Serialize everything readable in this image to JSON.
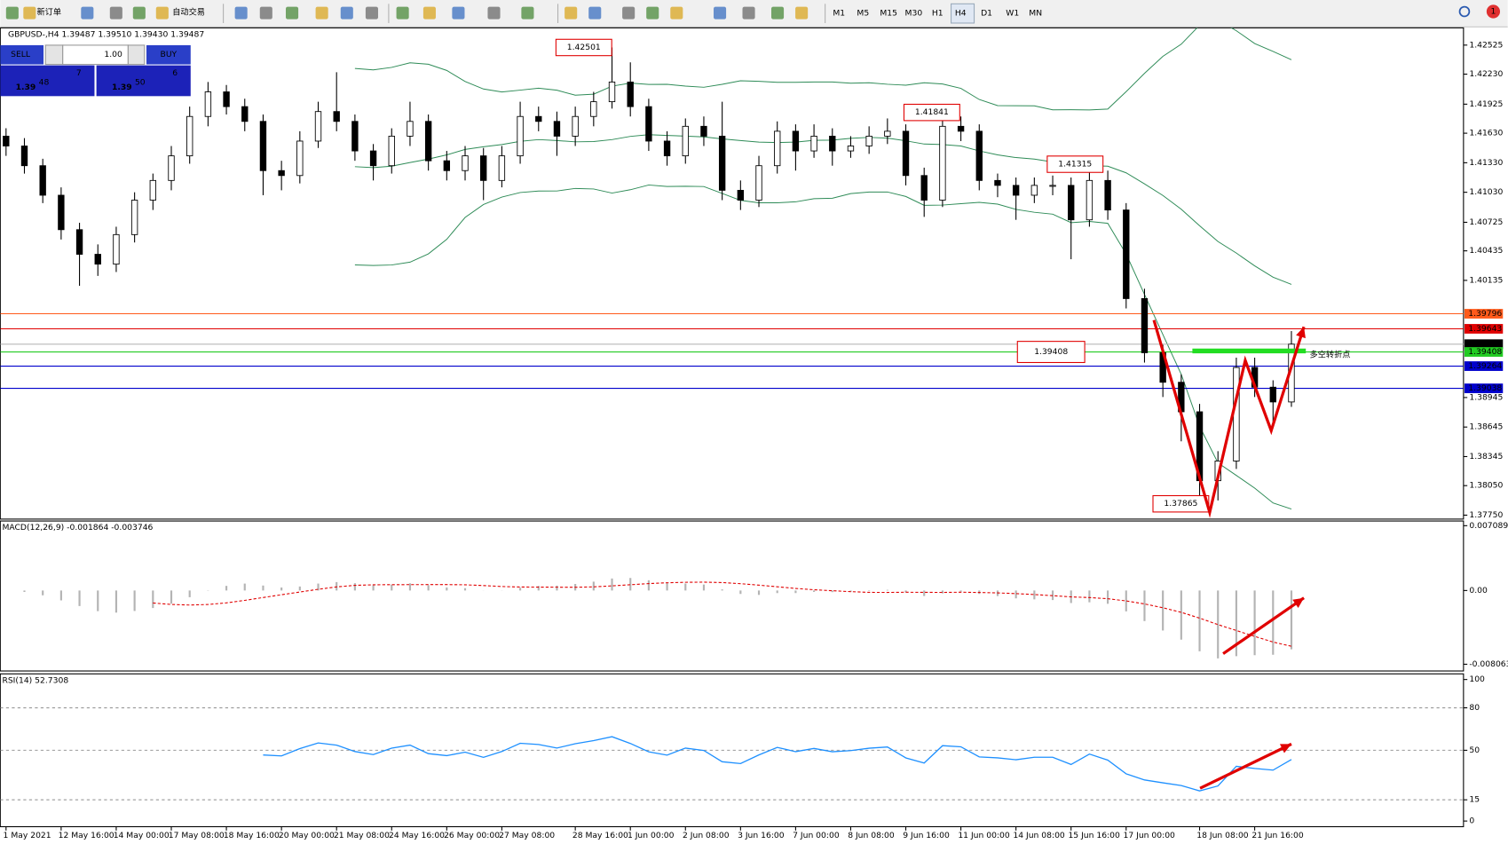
{
  "toolbar": {
    "new_order": "新订单",
    "auto_trading": "自动交易",
    "timeframes": [
      "M1",
      "M5",
      "M15",
      "M30",
      "H1",
      "H4",
      "D1",
      "W1",
      "MN"
    ],
    "active_timeframe": "H4",
    "notifications": "1"
  },
  "trade_panel": {
    "sell": "SELL",
    "buy": "BUY",
    "lots": "1.00",
    "bid": {
      "big": "1.39",
      "main": "48",
      "small": "7"
    },
    "ask": {
      "big": "1.39",
      "main": "50",
      "small": "6"
    }
  },
  "annotation": "多空转折点",
  "chart_data": [
    {
      "type": "candlestick",
      "title": "GBPUSD-,H4 1.39487 1.39510 1.39430 1.39487",
      "categories": [
        "1 May 2021",
        null,
        null,
        "12 May 16:00",
        null,
        null,
        "14 May 00:00",
        null,
        null,
        "17 May 08:00",
        null,
        null,
        "18 May 16:00",
        null,
        null,
        "20 May 00:00",
        null,
        null,
        "21 May 08:00",
        null,
        null,
        "24 May 16:00",
        null,
        null,
        "26 May 00:00",
        null,
        null,
        "27 May 08:00",
        null,
        null,
        null,
        "28 May 16:00",
        null,
        null,
        "1 Jun 00:00",
        null,
        null,
        "2 Jun 08:00",
        null,
        null,
        "3 Jun 16:00",
        null,
        null,
        "7 Jun 00:00",
        null,
        null,
        "8 Jun 08:00",
        null,
        null,
        "9 Jun 16:00",
        null,
        null,
        "11 Jun 00:00",
        null,
        null,
        "14 Jun 08:00",
        null,
        null,
        "15 Jun 16:00",
        null,
        null,
        "17 Jun 00:00",
        null,
        null,
        null,
        "18 Jun 08:00",
        null,
        null,
        "21 Jun 16:00",
        null,
        null
      ],
      "open": [
        1.416,
        1.415,
        1.413,
        1.41,
        1.4065,
        1.404,
        1.403,
        1.406,
        1.4095,
        1.4115,
        1.414,
        1.418,
        1.4205,
        1.419,
        1.4175,
        1.4125,
        1.412,
        1.4155,
        1.4185,
        1.4175,
        1.4145,
        1.413,
        1.416,
        1.4175,
        1.4135,
        1.4125,
        1.414,
        1.4115,
        1.414,
        1.418,
        1.4175,
        1.416,
        1.418,
        1.4195,
        1.4215,
        1.419,
        1.4155,
        1.414,
        1.417,
        1.416,
        1.4105,
        1.4095,
        1.413,
        1.4165,
        1.4145,
        1.416,
        1.4145,
        1.415,
        1.416,
        1.4165,
        1.412,
        1.4095,
        1.417,
        1.4165,
        1.4115,
        1.411,
        1.41,
        1.411,
        1.411,
        1.4075,
        1.4115,
        1.4085,
        1.3995,
        1.394,
        1.391,
        1.388,
        1.381,
        1.383,
        1.3925,
        1.3905,
        1.389
      ],
      "high": [
        1.4168,
        1.4158,
        1.4137,
        1.4108,
        1.4072,
        1.405,
        1.4068,
        1.4103,
        1.4122,
        1.415,
        1.419,
        1.4215,
        1.4212,
        1.4198,
        1.4182,
        1.4135,
        1.4165,
        1.4195,
        1.4225,
        1.4182,
        1.4152,
        1.4168,
        1.4195,
        1.4182,
        1.4145,
        1.415,
        1.4148,
        1.415,
        1.4195,
        1.419,
        1.4185,
        1.419,
        1.4205,
        1.42501,
        1.4235,
        1.4198,
        1.4165,
        1.4178,
        1.418,
        1.4195,
        1.4115,
        1.414,
        1.4175,
        1.4172,
        1.4172,
        1.4168,
        1.416,
        1.417,
        1.4178,
        1.4172,
        1.4128,
        1.41841,
        1.418,
        1.4172,
        1.4122,
        1.4118,
        1.4118,
        1.412,
        1.4118,
        1.41315,
        1.4125,
        1.4092,
        1.4005,
        1.3948,
        1.3918,
        1.3888,
        1.384,
        1.3935,
        1.3935,
        1.3912,
        1.3962
      ],
      "low": [
        1.414,
        1.4122,
        1.4092,
        1.4055,
        1.4008,
        1.4018,
        1.4022,
        1.4052,
        1.4085,
        1.4105,
        1.4132,
        1.417,
        1.4182,
        1.4165,
        1.41,
        1.4105,
        1.4112,
        1.4148,
        1.4165,
        1.4135,
        1.4115,
        1.4122,
        1.415,
        1.4125,
        1.4115,
        1.4115,
        1.4095,
        1.4108,
        1.4132,
        1.4165,
        1.414,
        1.415,
        1.417,
        1.4188,
        1.418,
        1.4145,
        1.413,
        1.4132,
        1.415,
        1.4095,
        1.4085,
        1.4088,
        1.4122,
        1.4125,
        1.4138,
        1.413,
        1.4138,
        1.4142,
        1.4152,
        1.411,
        1.4078,
        1.4088,
        1.4155,
        1.4105,
        1.4098,
        1.4075,
        1.4092,
        1.41,
        1.4035,
        1.4068,
        1.4075,
        1.3985,
        1.393,
        1.3895,
        1.385,
        1.37865,
        1.379,
        1.3822,
        1.3895,
        1.3868,
        1.3885
      ],
      "close": [
        1.415,
        1.413,
        1.41,
        1.4065,
        1.404,
        1.403,
        1.406,
        1.4095,
        1.4115,
        1.414,
        1.418,
        1.4205,
        1.419,
        1.4175,
        1.4125,
        1.412,
        1.4155,
        1.4185,
        1.4175,
        1.4145,
        1.413,
        1.416,
        1.4175,
        1.4135,
        1.4125,
        1.414,
        1.4115,
        1.414,
        1.418,
        1.4175,
        1.416,
        1.418,
        1.4195,
        1.4215,
        1.419,
        1.4155,
        1.414,
        1.417,
        1.416,
        1.4105,
        1.4095,
        1.413,
        1.4165,
        1.4145,
        1.416,
        1.4145,
        1.415,
        1.416,
        1.4165,
        1.412,
        1.4095,
        1.417,
        1.4165,
        1.4115,
        1.411,
        1.41,
        1.411,
        1.411,
        1.4075,
        1.4115,
        1.4085,
        1.3995,
        1.394,
        1.391,
        1.388,
        1.381,
        1.383,
        1.3925,
        1.3905,
        1.389,
        1.39487
      ],
      "ylim": [
        1.3771,
        1.427
      ],
      "yticks": [
        1.42525,
        {
          "value": 1.4223,
          "label": "1.42230"
        },
        1.41925,
        {
          "value": 1.4163,
          "label": "1.41630"
        },
        {
          "value": 1.4133,
          "label": "1.41330"
        },
        {
          "value": 1.4103,
          "label": "1.41030"
        },
        1.40725,
        1.40435,
        1.40135,
        1.38945,
        1.38645,
        1.38345,
        {
          "value": 1.3805,
          "label": "1.38050"
        },
        {
          "value": 1.3775,
          "label": "1.37750"
        }
      ],
      "levels": [
        {
          "value": 1.39796,
          "color": "#ff5a1a"
        },
        {
          "value": 1.39643,
          "color": "#e00000"
        },
        {
          "value": 1.39487,
          "color": "#000000"
        },
        {
          "value": 1.39408,
          "color": "#22cc22"
        },
        {
          "value": 1.39264,
          "color": "#0000cc"
        },
        {
          "value": 1.39038,
          "color": "#0000cc"
        }
      ],
      "price_labels": [
        1.42501,
        1.41841,
        1.41315,
        1.37865
      ],
      "bands_color": "#2e8b57"
    },
    {
      "type": "macd",
      "title": "MACD(12,26,9) -0.001864 -0.003746",
      "ylim": [
        -0.0088,
        0.0076
      ],
      "yticks": [
        0.007089,
        {
          "value": 0,
          "label": "0.00"
        },
        -0.008063
      ],
      "histogram_color": "#b4b4b4",
      "signal_color": "#e00000"
    },
    {
      "type": "rsi",
      "title": "RSI(14) 52.7308",
      "ylim": [
        -4,
        104
      ],
      "yticks": [
        100,
        80,
        50,
        15,
        0
      ],
      "levels": [
        80,
        50,
        15
      ],
      "color": "#1e90ff"
    }
  ]
}
